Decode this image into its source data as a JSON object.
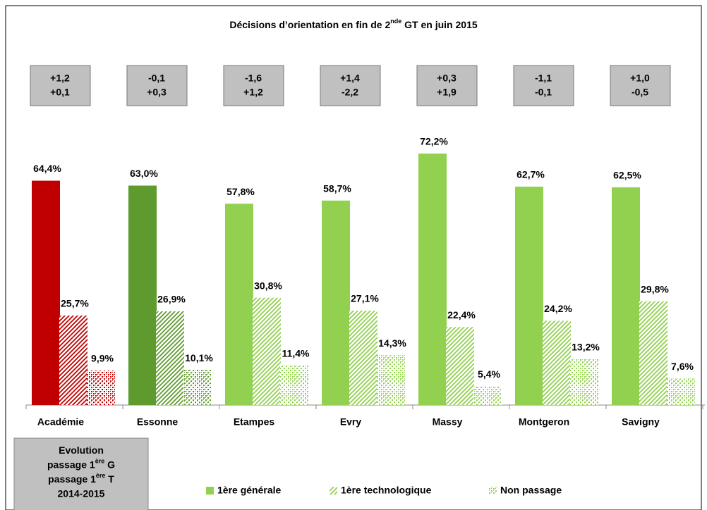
{
  "chart_data": {
    "type": "bar",
    "title": [
      "Décisions d’orientation en fin de 2",
      "nde",
      " GT en juin 2015"
    ],
    "categories": [
      "Académie",
      "Essonne",
      "Etampes",
      "Evry",
      "Massy",
      "Montgeron",
      "Savigny"
    ],
    "category_colors": [
      "#c00000",
      "#5f9a2e",
      "#92d050",
      "#92d050",
      "#92d050",
      "#92d050",
      "#92d050"
    ],
    "series": [
      {
        "name": "1ère générale",
        "pattern": "solid",
        "color": "#92d050",
        "values": [
          64.4,
          63.0,
          57.8,
          58.7,
          72.2,
          62.7,
          62.5
        ],
        "value_labels": [
          "64,4%",
          "63,0%",
          "57,8%",
          "58,7%",
          "72,2%",
          "62,7%",
          "62,5%"
        ]
      },
      {
        "name": "1ère technologique",
        "pattern": "hatch",
        "color": "#92d050",
        "values": [
          25.7,
          26.9,
          30.8,
          27.1,
          22.4,
          24.2,
          29.8
        ],
        "value_labels": [
          "25,7%",
          "26,9%",
          "30,8%",
          "27,1%",
          "22,4%",
          "24,2%",
          "29,8%"
        ]
      },
      {
        "name": "Non passage",
        "pattern": "dots",
        "color": "#92d050",
        "values": [
          9.9,
          10.1,
          11.4,
          14.3,
          5.4,
          13.2,
          7.6
        ],
        "value_labels": [
          "9,9%",
          "10,1%",
          "11,4%",
          "14,3%",
          "5,4%",
          "13,2%",
          "7,6%"
        ]
      }
    ],
    "annotations": [
      {
        "g": "+1,2",
        "t": "+0,1"
      },
      {
        "g": "-0,1",
        "t": "+0,3"
      },
      {
        "g": "-1,6",
        "t": "+1,2"
      },
      {
        "g": "+1,4",
        "t": "-2,2"
      },
      {
        "g": "+0,3",
        "t": "+1,9"
      },
      {
        "g": "-1,1",
        "t": "-0,1"
      },
      {
        "g": "+1,0",
        "t": "-0,5"
      }
    ],
    "annotation_legend": [
      [
        "Evolution"
      ],
      [
        "passage 1",
        "ère",
        " G"
      ],
      [
        "passage 1",
        "ère",
        " T"
      ],
      [
        "2014-2015"
      ]
    ],
    "annotation_t_color": "#2e7d1e"
  }
}
